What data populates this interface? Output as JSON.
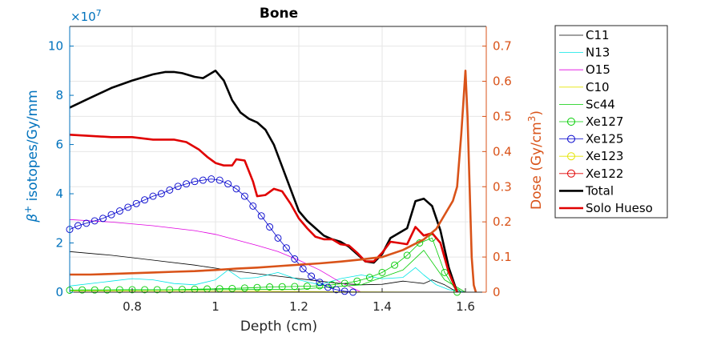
{
  "chart_data": {
    "type": "line",
    "title": "Bone",
    "xlabel": "Depth (cm)",
    "ylabel_left": "β⁺ isotopes/Gy/mm",
    "ylabel_left_parts": {
      "beta": "β",
      "sup": "+",
      "rest": " isotopes/Gy/mm"
    },
    "ylabel_right": "Dose (Gy/cm³)",
    "ylabel_right_parts": {
      "main": "Dose (Gy/cm",
      "sup": "3",
      "end": ")"
    },
    "left_exponent": {
      "base": "×10",
      "power": "7"
    },
    "xlim": [
      0.65,
      1.65
    ],
    "ylim_left": [
      0,
      108000000
    ],
    "ylim_right": [
      0,
      0.756
    ],
    "x_ticks": [
      0.8,
      1.0,
      1.2,
      1.4,
      1.6
    ],
    "x_tick_labels": [
      "0.8",
      "1",
      "1.2",
      "1.4",
      "1.6"
    ],
    "y_left_ticks": [
      0,
      20000000,
      40000000,
      60000000,
      80000000,
      100000000
    ],
    "y_left_tick_labels": [
      "0",
      "2",
      "4",
      "6",
      "8",
      "10"
    ],
    "y_right_ticks": [
      0,
      0.1,
      0.2,
      0.3,
      0.4,
      0.5,
      0.6,
      0.7
    ],
    "y_right_tick_labels": [
      "0",
      "0.1",
      "0.2",
      "0.3",
      "0.4",
      "0.5",
      "0.6",
      "0.7"
    ],
    "grid": true,
    "legend_position": "outside-right",
    "colors": {
      "left_axis": "#0072BD",
      "right_axis": "#D95319"
    },
    "legend": [
      {
        "label": "C11",
        "color": "#000000",
        "width": 0.8,
        "marker": false
      },
      {
        "label": "N13",
        "color": "#00E5E5",
        "width": 0.8,
        "marker": false
      },
      {
        "label": "O15",
        "color": "#E000E0",
        "width": 0.8,
        "marker": false
      },
      {
        "label": "C10",
        "color": "#E5E500",
        "width": 0.8,
        "marker": false
      },
      {
        "label": "Sc44",
        "color": "#00CC00",
        "width": 0.8,
        "marker": false
      },
      {
        "label": "Xe127",
        "color": "#00CC00",
        "width": 0.8,
        "marker": true
      },
      {
        "label": "Xe125",
        "color": "#0000CC",
        "width": 0.8,
        "marker": true
      },
      {
        "label": "Xe123",
        "color": "#E5E500",
        "width": 0.8,
        "marker": true
      },
      {
        "label": "Xe122",
        "color": "#E00000",
        "width": 0.8,
        "marker": true
      },
      {
        "label": "Total",
        "color": "#000000",
        "width": 2.6,
        "marker": false
      },
      {
        "label": "Solo Hueso",
        "color": "#E00000",
        "width": 2.6,
        "marker": false
      }
    ],
    "series": [
      {
        "name": "C11",
        "axis": "left",
        "color": "#000000",
        "width": 0.8,
        "marker": false,
        "x": [
          0.65,
          0.75,
          0.85,
          0.95,
          1.05,
          1.15,
          1.25,
          1.3,
          1.35,
          1.4,
          1.45,
          1.5,
          1.52,
          1.55,
          1.57,
          1.6
        ],
        "y": [
          16500000,
          15000000,
          13000000,
          11000000,
          8500000,
          6500000,
          4500000,
          3500000,
          3000000,
          3200000,
          4500000,
          3500000,
          5000000,
          3000000,
          1000000,
          0
        ]
      },
      {
        "name": "N13",
        "axis": "left",
        "color": "#00E5E5",
        "width": 0.8,
        "marker": false,
        "x": [
          0.65,
          0.75,
          0.8,
          0.85,
          0.9,
          0.95,
          1.0,
          1.03,
          1.06,
          1.1,
          1.15,
          1.2,
          1.25,
          1.3,
          1.35,
          1.4,
          1.45,
          1.48,
          1.5,
          1.53,
          1.56,
          1.6
        ],
        "y": [
          2500000,
          4500000,
          5500000,
          5000000,
          3500000,
          3000000,
          5000000,
          9000000,
          5500000,
          6000000,
          8000000,
          5000000,
          3000000,
          5500000,
          7000000,
          5500000,
          6000000,
          10000000,
          7000000,
          3000000,
          1000000,
          0
        ]
      },
      {
        "name": "O15",
        "axis": "left",
        "color": "#E000E0",
        "width": 0.8,
        "marker": false,
        "x": [
          0.65,
          0.75,
          0.85,
          0.95,
          1.0,
          1.1,
          1.15,
          1.2,
          1.25,
          1.3,
          1.35
        ],
        "y": [
          29500000,
          28500000,
          27000000,
          25000000,
          23500000,
          19000000,
          16500000,
          13000000,
          9000000,
          4000000,
          0
        ]
      },
      {
        "name": "C10",
        "axis": "left",
        "color": "#E5E500",
        "width": 0.8,
        "marker": false,
        "x": [
          0.65,
          1.1,
          1.3,
          1.6
        ],
        "y": [
          500000,
          400000,
          200000,
          0
        ]
      },
      {
        "name": "Sc44",
        "axis": "left",
        "color": "#00CC00",
        "width": 0.8,
        "marker": false,
        "x": [
          0.65,
          1.0,
          1.2,
          1.35,
          1.45,
          1.5,
          1.55,
          1.6
        ],
        "y": [
          800000,
          1000000,
          1200000,
          3000000,
          9000000,
          17000000,
          5000000,
          0
        ]
      },
      {
        "name": "Xe127",
        "axis": "left",
        "color": "#00CC00",
        "width": 0.8,
        "marker": true,
        "x": [
          0.65,
          0.68,
          0.71,
          0.74,
          0.77,
          0.8,
          0.83,
          0.86,
          0.89,
          0.92,
          0.95,
          0.98,
          1.01,
          1.04,
          1.07,
          1.1,
          1.13,
          1.16,
          1.19,
          1.22,
          1.25,
          1.28,
          1.31,
          1.34,
          1.37,
          1.4,
          1.43,
          1.46,
          1.49,
          1.52,
          1.55,
          1.58
        ],
        "y": [
          800000,
          900000,
          900000,
          900000,
          1000000,
          1000000,
          1000000,
          1000000,
          1000000,
          1100000,
          1200000,
          1300000,
          1400000,
          1500000,
          1700000,
          1900000,
          2100000,
          2200000,
          2300000,
          2400000,
          2600000,
          3000000,
          3600000,
          4500000,
          6000000,
          8000000,
          11000000,
          15000000,
          20000000,
          22000000,
          8000000,
          0
        ]
      },
      {
        "name": "Xe125",
        "axis": "left",
        "color": "#0000CC",
        "width": 0.8,
        "marker": true,
        "x": [
          0.65,
          0.67,
          0.69,
          0.71,
          0.73,
          0.75,
          0.77,
          0.79,
          0.81,
          0.83,
          0.85,
          0.87,
          0.89,
          0.91,
          0.93,
          0.95,
          0.97,
          0.99,
          1.01,
          1.03,
          1.05,
          1.07,
          1.09,
          1.11,
          1.13,
          1.15,
          1.17,
          1.19,
          1.21,
          1.23,
          1.25,
          1.27,
          1.29,
          1.31,
          1.33
        ],
        "y": [
          25500000,
          27000000,
          28000000,
          29000000,
          30000000,
          31500000,
          33000000,
          34500000,
          36000000,
          37500000,
          39000000,
          40000000,
          41500000,
          43000000,
          44000000,
          45000000,
          45500000,
          46000000,
          45500000,
          44000000,
          42000000,
          39000000,
          35000000,
          31000000,
          26500000,
          22000000,
          18000000,
          13500000,
          9500000,
          6500000,
          4000000,
          2000000,
          1000000,
          400000,
          0
        ]
      },
      {
        "name": "Xe123",
        "axis": "left",
        "color": "#E5E500",
        "width": 0.8,
        "marker": true,
        "x": [],
        "y": []
      },
      {
        "name": "Xe122",
        "axis": "left",
        "color": "#E00000",
        "width": 0.8,
        "marker": true,
        "x": [],
        "y": []
      },
      {
        "name": "Total",
        "axis": "left",
        "color": "#000000",
        "width": 2.6,
        "marker": false,
        "x": [
          0.65,
          0.7,
          0.75,
          0.8,
          0.85,
          0.88,
          0.9,
          0.92,
          0.95,
          0.97,
          1.0,
          1.02,
          1.04,
          1.06,
          1.08,
          1.1,
          1.12,
          1.14,
          1.16,
          1.18,
          1.2,
          1.22,
          1.24,
          1.26,
          1.28,
          1.3,
          1.32,
          1.34,
          1.36,
          1.38,
          1.4,
          1.42,
          1.44,
          1.46,
          1.48,
          1.5,
          1.52,
          1.54,
          1.56,
          1.58
        ],
        "y": [
          75000000,
          79000000,
          83000000,
          86000000,
          88500000,
          89500000,
          89500000,
          89000000,
          87500000,
          87000000,
          90000000,
          86000000,
          78000000,
          73000000,
          70500000,
          69000000,
          66000000,
          60000000,
          51000000,
          42000000,
          33000000,
          29000000,
          26000000,
          23000000,
          21500000,
          20500000,
          18500000,
          15500000,
          12500000,
          12000000,
          15500000,
          22000000,
          24000000,
          26000000,
          37000000,
          38000000,
          35000000,
          25000000,
          10000000,
          0
        ]
      },
      {
        "name": "Solo Hueso",
        "axis": "left",
        "color": "#E00000",
        "width": 2.6,
        "marker": false,
        "x": [
          0.65,
          0.7,
          0.75,
          0.8,
          0.85,
          0.9,
          0.93,
          0.96,
          0.98,
          1.0,
          1.02,
          1.04,
          1.05,
          1.07,
          1.09,
          1.1,
          1.12,
          1.14,
          1.16,
          1.18,
          1.2,
          1.22,
          1.24,
          1.26,
          1.28,
          1.3,
          1.32,
          1.34,
          1.36,
          1.38,
          1.4,
          1.42,
          1.44,
          1.46,
          1.48,
          1.5,
          1.52,
          1.54,
          1.56,
          1.58
        ],
        "y": [
          64000000,
          63500000,
          63000000,
          63000000,
          62000000,
          62000000,
          61000000,
          58000000,
          55000000,
          52500000,
          51500000,
          51500000,
          54000000,
          53500000,
          45000000,
          39000000,
          39500000,
          42000000,
          41000000,
          36000000,
          30000000,
          26000000,
          22500000,
          21500000,
          21500000,
          19500000,
          19000000,
          16000000,
          12500000,
          12500000,
          16000000,
          20500000,
          20000000,
          19500000,
          26500000,
          23000000,
          24000000,
          20000000,
          8000000,
          0
        ]
      },
      {
        "name": "Dose",
        "axis": "right",
        "color": "#D95319",
        "width": 2.6,
        "marker": false,
        "x": [
          0.65,
          0.7,
          0.75,
          0.8,
          0.85,
          0.9,
          0.95,
          1.0,
          1.05,
          1.1,
          1.15,
          1.2,
          1.25,
          1.3,
          1.35,
          1.4,
          1.45,
          1.5,
          1.53,
          1.55,
          1.57,
          1.58,
          1.59,
          1.6,
          1.605,
          1.61,
          1.615,
          1.62,
          1.625
        ],
        "y": [
          0.05,
          0.05,
          0.052,
          0.054,
          0.056,
          0.058,
          0.06,
          0.063,
          0.067,
          0.07,
          0.074,
          0.078,
          0.082,
          0.087,
          0.093,
          0.1,
          0.12,
          0.15,
          0.18,
          0.22,
          0.26,
          0.3,
          0.45,
          0.63,
          0.5,
          0.3,
          0.1,
          0.02,
          0
        ]
      }
    ]
  }
}
